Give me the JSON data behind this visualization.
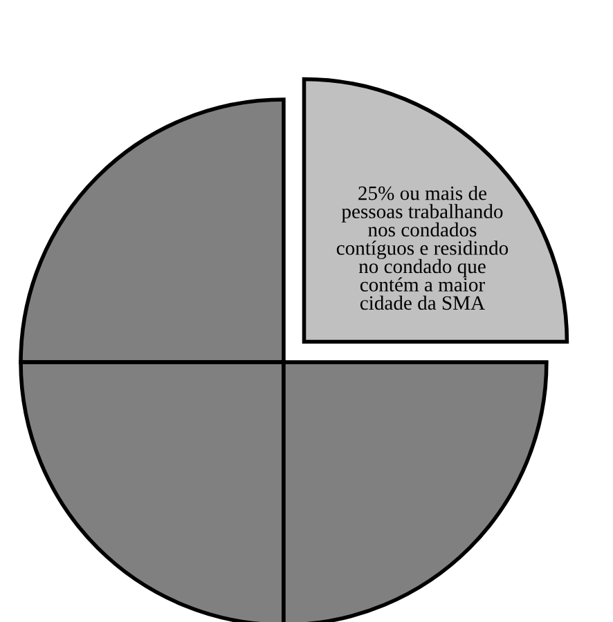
{
  "chart_data": {
    "type": "pie",
    "categories": [
      "25% ou mais de\npessoas trabalhando\nnos condados\ncontíguos e residindo\nno condado que\ncontém a maior\ncidade da SMA",
      null,
      null,
      null
    ],
    "values": [
      25,
      25,
      25,
      25
    ],
    "colors": [
      "#c0c0c0",
      "#808080",
      "#808080",
      "#808080"
    ]
  }
}
